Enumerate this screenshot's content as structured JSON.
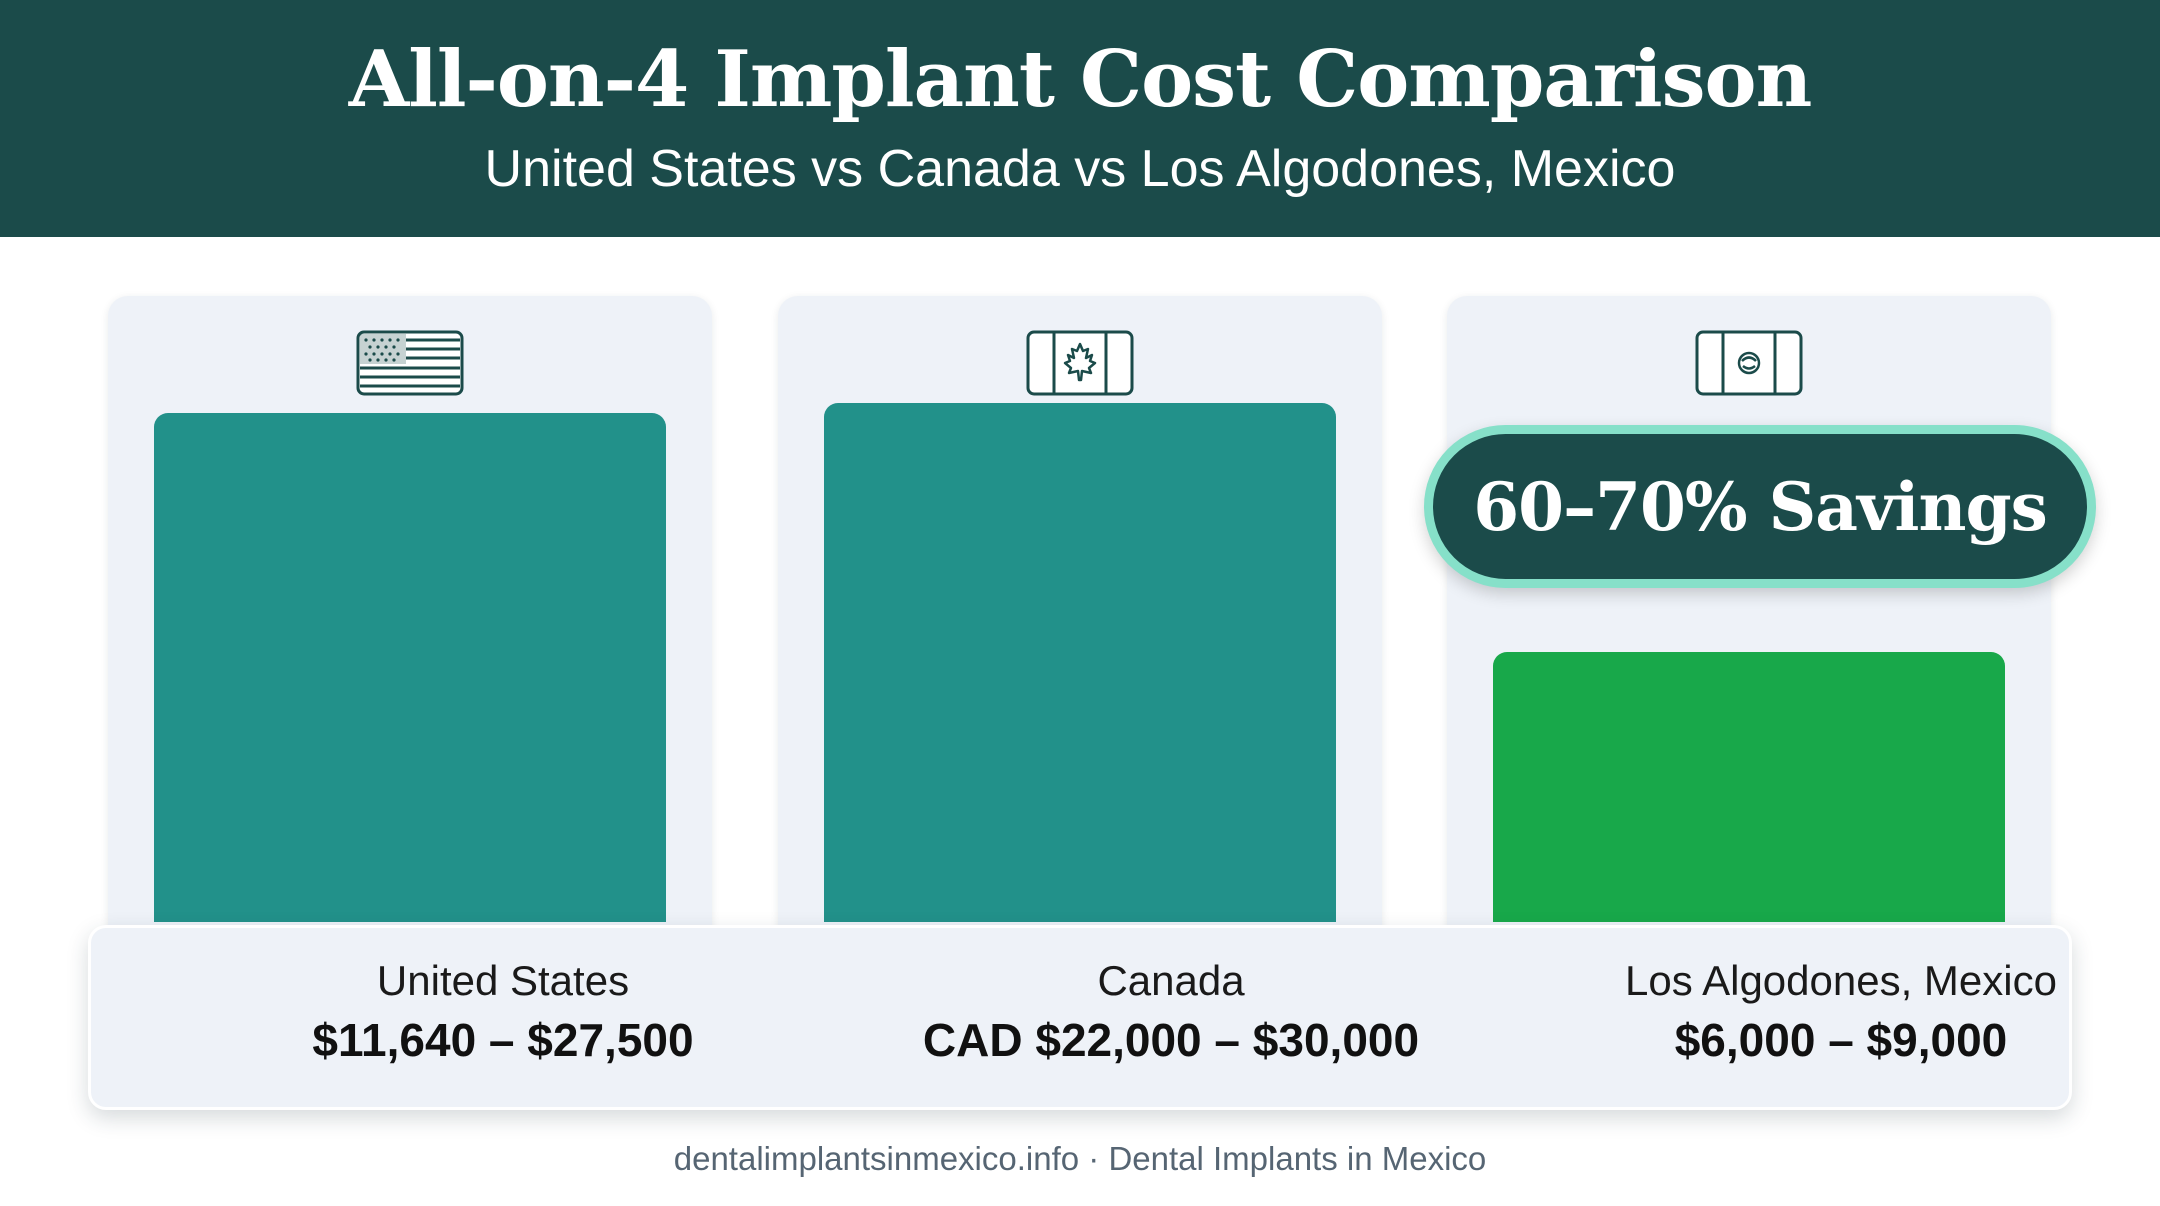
{
  "header": {
    "title": "All-on-4 Implant Cost Comparison",
    "subtitle": "United States vs Canada vs Los Algodones, Mexico"
  },
  "badge": {
    "text": "60–70% Savings"
  },
  "footer": {
    "text": "dentalimplantsinmexico.info · Dental Implants in Mexico"
  },
  "colors": {
    "header_bg": "#1b4b4a",
    "bar_teal": "#22918a",
    "bar_green": "#18a84a",
    "card_bg": "#eef2f8",
    "badge_border": "#86e0c9",
    "flag_stroke": "#1b4b4a"
  },
  "chart_data": {
    "type": "bar",
    "title": "All-on-4 Implant Cost Comparison",
    "subtitle": "United States vs Canada vs Los Algodones, Mexico",
    "categories": [
      "United States",
      "Canada",
      "Los Algodones, Mexico"
    ],
    "price_labels": [
      "$11,640 – $27,500",
      "CAD $22,000 – $30,000",
      "$6,000 – $9,000"
    ],
    "flag_icons": [
      "us-flag-icon",
      "canada-flag-icon",
      "mexico-flag-icon"
    ],
    "bar_colors": [
      "#22918a",
      "#22918a",
      "#18a84a"
    ],
    "relative_bar_heights": [
      0.96,
      0.98,
      0.51
    ],
    "annotation": "60–70% Savings",
    "annotation_target": "Los Algodones, Mexico"
  }
}
